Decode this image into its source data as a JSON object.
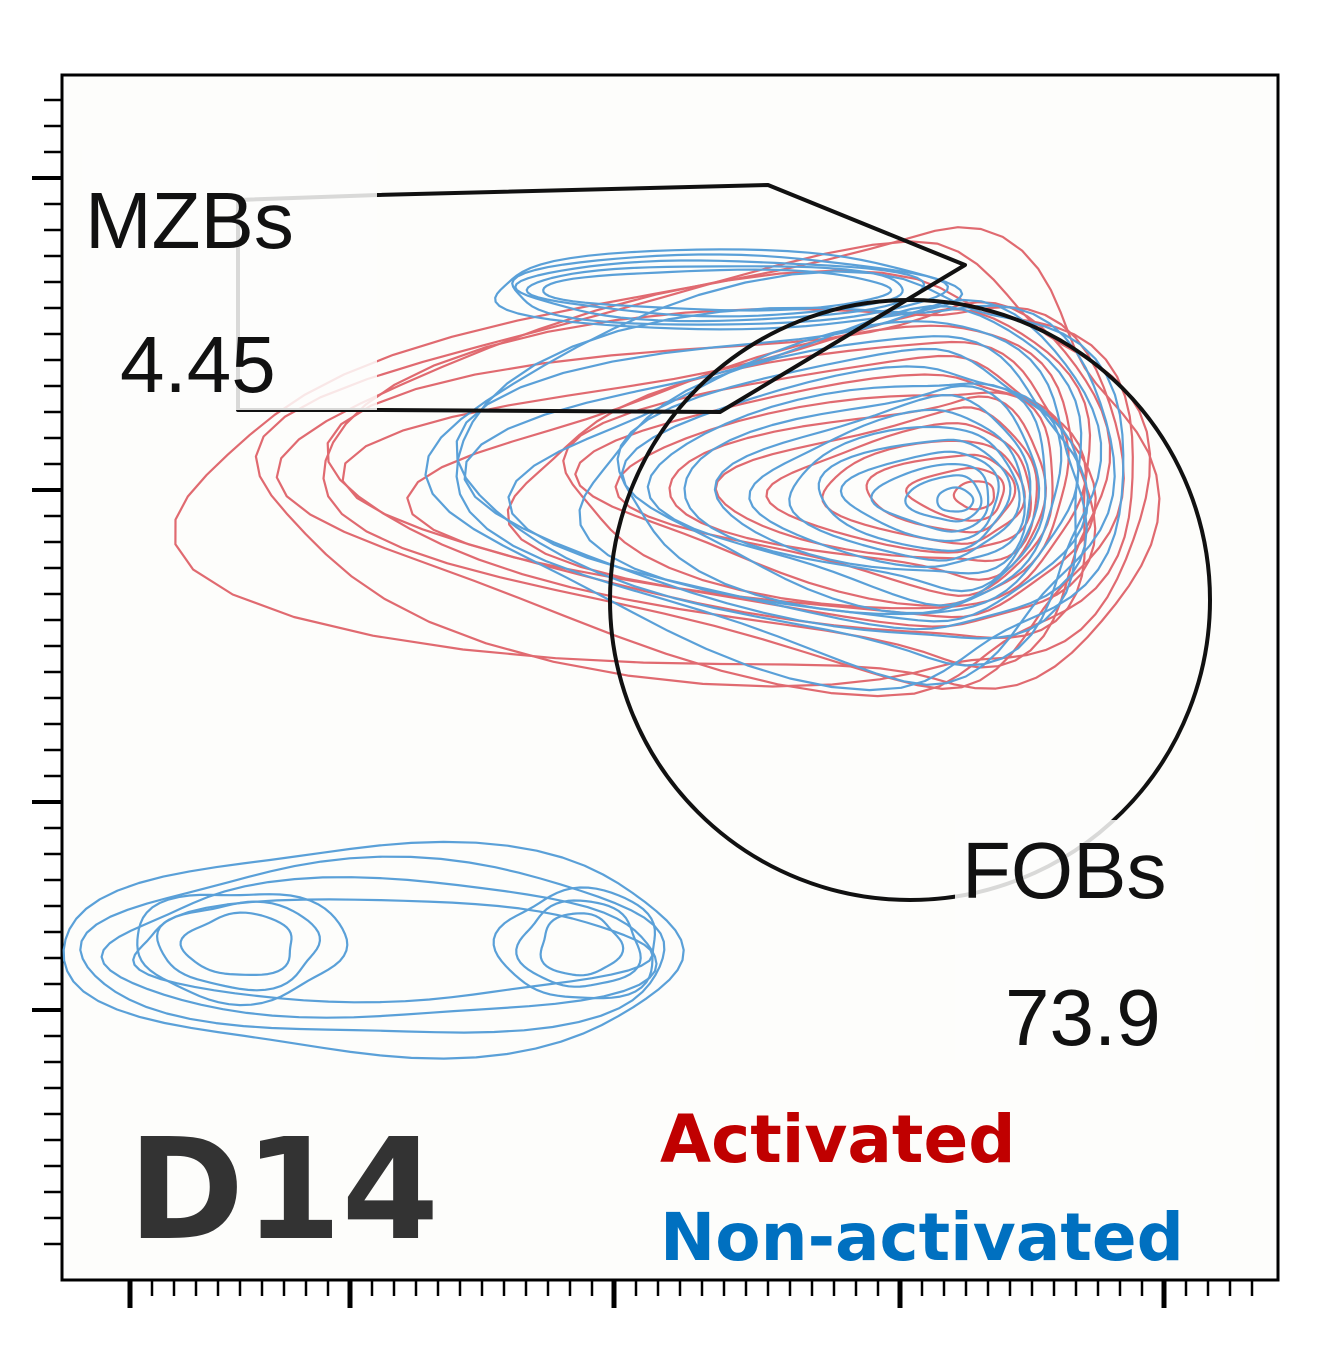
{
  "chart_data": {
    "type": "contour",
    "title": "",
    "xlabel": "",
    "ylabel": "",
    "axis_scale": "log",
    "timepoint_label": "D14",
    "gates": [
      {
        "name": "MZBs",
        "value": "4.45",
        "shape": "polygon"
      },
      {
        "name": "FOBs",
        "value": "73.9",
        "shape": "ellipse"
      }
    ],
    "series": [
      {
        "name": "Activated",
        "color": "#c00000",
        "contour_color": "#e06a70"
      },
      {
        "name": "Non-activated",
        "color": "#0070c0",
        "contour_color": "#5aa0d8"
      }
    ],
    "legend_position": "bottom-right",
    "grid": false
  }
}
